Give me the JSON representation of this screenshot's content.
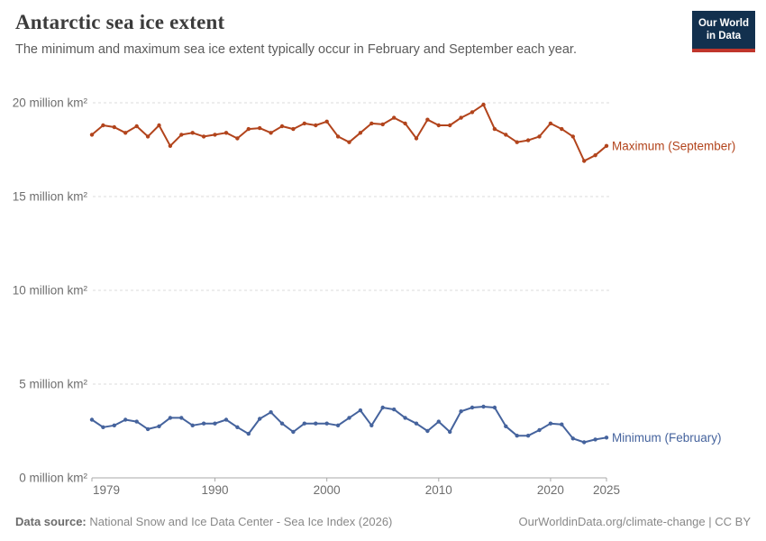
{
  "header": {
    "title": "Antarctic sea ice extent",
    "subtitle": "The minimum and maximum sea ice extent typically occur in February and September each year.",
    "logo": {
      "line1": "Our World",
      "line2": "in Data",
      "bg_color": "#12304e",
      "bar_color": "#c0362c"
    }
  },
  "chart_data": {
    "type": "line",
    "title": "Antarctic sea ice extent",
    "xlabel": "",
    "ylabel": "million km²",
    "xlim": [
      1979,
      2025
    ],
    "ylim": [
      0,
      20
    ],
    "grid": "horizontal-dashed",
    "x_ticks": [
      1979,
      1990,
      2000,
      2010,
      2020,
      2025
    ],
    "y_ticks": [
      0,
      5,
      10,
      15,
      20
    ],
    "y_tick_labels": [
      "0 million km²",
      "5 million km²",
      "10 million km²",
      "15 million km²",
      "20 million km²"
    ],
    "x": [
      1979,
      1980,
      1981,
      1982,
      1983,
      1984,
      1985,
      1986,
      1987,
      1988,
      1989,
      1990,
      1991,
      1992,
      1993,
      1994,
      1995,
      1996,
      1997,
      1998,
      1999,
      2000,
      2001,
      2002,
      2003,
      2004,
      2005,
      2006,
      2007,
      2008,
      2009,
      2010,
      2011,
      2012,
      2013,
      2014,
      2015,
      2016,
      2017,
      2018,
      2019,
      2020,
      2021,
      2022,
      2023,
      2024,
      2025
    ],
    "series": [
      {
        "name": "Maximum (September)",
        "color": "#b2441c",
        "values": [
          18.3,
          18.8,
          18.7,
          18.4,
          18.75,
          18.2,
          18.8,
          17.7,
          18.3,
          18.4,
          18.2,
          18.3,
          18.4,
          18.1,
          18.6,
          18.65,
          18.4,
          18.75,
          18.6,
          18.9,
          18.8,
          19.0,
          18.2,
          17.9,
          18.4,
          18.9,
          18.85,
          19.2,
          18.9,
          18.1,
          19.1,
          18.8,
          18.8,
          19.2,
          19.5,
          19.9,
          18.6,
          18.3,
          17.9,
          18.0,
          18.2,
          18.9,
          18.6,
          18.2,
          16.9,
          17.2,
          17.7
        ]
      },
      {
        "name": "Minimum (February)",
        "color": "#45639d",
        "values": [
          3.1,
          2.7,
          2.8,
          3.1,
          3.0,
          2.6,
          2.75,
          3.2,
          3.2,
          2.8,
          2.9,
          2.9,
          3.1,
          2.7,
          2.35,
          3.15,
          3.5,
          2.9,
          2.45,
          2.9,
          2.9,
          2.9,
          2.8,
          3.2,
          3.6,
          2.8,
          3.75,
          3.65,
          3.2,
          2.9,
          2.5,
          3.0,
          2.45,
          3.55,
          3.75,
          3.8,
          3.75,
          2.75,
          2.25,
          2.25,
          2.55,
          2.9,
          2.85,
          2.1,
          1.9,
          2.05,
          2.15
        ]
      }
    ],
    "legend_position": "end-of-line labels, right side"
  },
  "footer": {
    "source_label": "Data source:",
    "source_text": " National Snow and Ice Data Center - Sea Ice Index (2026)",
    "link": "OurWorldinData.org/climate-change",
    "separator": " | ",
    "license": "CC BY"
  },
  "colors": {
    "grid": "#dbdbdb",
    "axis": "#a9a9a9",
    "tick_text": "#6e6e6e"
  }
}
